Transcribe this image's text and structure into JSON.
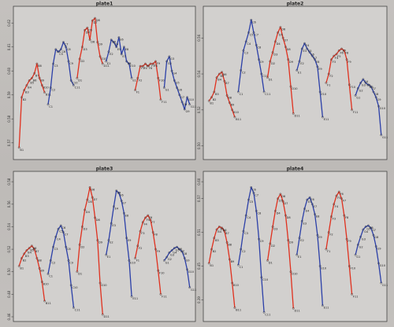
{
  "chart_data": [
    {
      "type": "line",
      "title": "plate1",
      "xlabel": "",
      "ylabel": "",
      "ylim": [
        0.565,
        0.625
      ],
      "yticks": [
        "0.57",
        "0.58",
        "0.59",
        "0.60",
        "0.61",
        "0.62"
      ],
      "series": [
        {
          "color": "#e0301e",
          "labels": [
            "B1",
            "B2",
            "B3",
            "B4",
            "B5",
            "B6",
            "B7",
            "B8",
            "B9",
            "B10",
            "B11"
          ],
          "values": [
            0.568,
            0.589,
            0.592,
            0.594,
            0.596,
            0.597,
            0.599,
            0.603,
            0.597,
            0.594,
            0.591
          ]
        },
        {
          "color": "#2b3fa8",
          "labels": [
            "C1",
            "C2",
            "C3",
            "C4",
            "C5",
            "C6",
            "C7",
            "C8",
            "C9",
            "C10",
            "C11"
          ],
          "values": [
            0.586,
            0.593,
            0.603,
            0.609,
            0.608,
            0.609,
            0.612,
            0.61,
            0.604,
            0.596,
            0.594
          ]
        },
        {
          "color": "#e0301e",
          "labels": [
            "D1",
            "D2",
            "D3",
            "D4",
            "D5",
            "D6",
            "D7",
            "D8",
            "D9",
            "D10",
            "D11"
          ],
          "values": [
            0.597,
            0.605,
            0.61,
            0.617,
            0.618,
            0.613,
            0.621,
            0.622,
            0.612,
            0.606,
            0.603
          ]
        },
        {
          "color": "#2b3fa8",
          "labels": [
            "E1",
            "E2",
            "E3",
            "E4",
            "E5",
            "E6",
            "E7",
            "E8",
            "E9",
            "E10",
            "E11"
          ],
          "values": [
            0.604,
            0.608,
            0.613,
            0.612,
            0.61,
            0.614,
            0.607,
            0.61,
            0.604,
            0.603,
            0.597
          ]
        },
        {
          "color": "#e0301e",
          "labels": [
            "F1",
            "F2",
            "F3",
            "F4",
            "F5",
            "F6",
            "F7",
            "F8",
            "F9",
            "F10",
            "F11"
          ],
          "values": [
            0.592,
            0.597,
            0.602,
            0.602,
            0.603,
            0.602,
            0.603,
            0.603,
            0.604,
            0.597,
            0.588
          ]
        },
        {
          "color": "#2b3fa8",
          "labels": [
            "G1",
            "G2",
            "G3",
            "G4",
            "G5",
            "G6",
            "G7",
            "G8",
            "G9",
            "G10",
            "G11"
          ],
          "values": [
            0.593,
            0.604,
            0.606,
            0.6,
            0.596,
            0.593,
            0.59,
            0.587,
            0.584,
            0.589,
            0.586
          ]
        }
      ]
    },
    {
      "type": "line",
      "title": "plate2",
      "xlabel": "",
      "ylabel": "",
      "ylim": [
        0.495,
        0.575
      ],
      "yticks": [
        "0.50",
        "0.52",
        "0.54",
        "0.56"
      ],
      "series": [
        {
          "color": "#e0301e",
          "labels": [
            "B1",
            "B2",
            "B3",
            "B4",
            "B5",
            "B6",
            "B7",
            "B8",
            "B9",
            "B10",
            "B11"
          ],
          "values": [
            0.525,
            0.527,
            0.53,
            0.538,
            0.54,
            0.541,
            0.536,
            0.528,
            0.524,
            0.52,
            0.516
          ]
        },
        {
          "color": "#2b3fa8",
          "labels": [
            "C1",
            "C2",
            "C3",
            "C4",
            "C5",
            "C6",
            "C7",
            "C8",
            "C9",
            "C10",
            "C11"
          ],
          "values": [
            0.53,
            0.542,
            0.553,
            0.558,
            0.563,
            0.57,
            0.563,
            0.556,
            0.548,
            0.54,
            0.53
          ]
        },
        {
          "color": "#e0301e",
          "labels": [
            "D1",
            "D2",
            "D3",
            "D4",
            "D5",
            "D6",
            "D7",
            "D8",
            "D9",
            "D10",
            "D11"
          ],
          "values": [
            0.538,
            0.547,
            0.552,
            0.558,
            0.563,
            0.566,
            0.56,
            0.555,
            0.548,
            0.533,
            0.518
          ]
        },
        {
          "color": "#2b3fa8",
          "labels": [
            "E1",
            "E2",
            "E3",
            "E4",
            "E5",
            "E6",
            "E7",
            "E8",
            "E9",
            "E10",
            "E11"
          ],
          "values": [
            0.542,
            0.547,
            0.554,
            0.557,
            0.554,
            0.552,
            0.55,
            0.548,
            0.544,
            0.53,
            0.516
          ]
        },
        {
          "color": "#e0301e",
          "labels": [
            "F1",
            "F2",
            "F3",
            "F4",
            "F5",
            "F6",
            "F7",
            "F8",
            "F9",
            "F10",
            "F11"
          ],
          "values": [
            0.535,
            0.54,
            0.548,
            0.55,
            0.551,
            0.553,
            0.554,
            0.553,
            0.548,
            0.534,
            0.52
          ]
        },
        {
          "color": "#2b3fa8",
          "labels": [
            "G1",
            "G2",
            "G3",
            "G4",
            "G5",
            "G6",
            "G7",
            "G8",
            "G9",
            "G10",
            "G11"
          ],
          "values": [
            0.528,
            0.532,
            0.535,
            0.537,
            0.535,
            0.534,
            0.533,
            0.53,
            0.527,
            0.522,
            0.506
          ]
        }
      ]
    },
    {
      "type": "line",
      "title": "plate3",
      "xlabel": "",
      "ylabel": "",
      "ylim": [
        0.46,
        0.585
      ],
      "yticks": [
        "0.46",
        "0.48",
        "0.50",
        "0.52",
        "0.54",
        "0.56",
        "0.58"
      ],
      "series": [
        {
          "color": "#e0301e",
          "labels": [
            "B1",
            "B2",
            "B3",
            "B4",
            "B5",
            "B6",
            "B7",
            "B8",
            "B9",
            "B10",
            "B11"
          ],
          "values": [
            0.505,
            0.512,
            0.516,
            0.519,
            0.521,
            0.523,
            0.52,
            0.512,
            0.503,
            0.491,
            0.474
          ]
        },
        {
          "color": "#2b3fa8",
          "labels": [
            "C1",
            "C2",
            "C3",
            "C4",
            "C5",
            "C6",
            "C7",
            "C8",
            "C9",
            "C10",
            "C11"
          ],
          "values": [
            0.498,
            0.51,
            0.522,
            0.531,
            0.538,
            0.541,
            0.535,
            0.522,
            0.51,
            0.488,
            0.468
          ]
        },
        {
          "color": "#e0301e",
          "labels": [
            "D1",
            "D2",
            "D3",
            "D4",
            "D5",
            "D6",
            "D7",
            "D8",
            "D9",
            "D10",
            "D11"
          ],
          "values": [
            0.5,
            0.524,
            0.54,
            0.555,
            0.564,
            0.575,
            0.566,
            0.548,
            0.528,
            0.49,
            0.462
          ]
        },
        {
          "color": "#2b3fa8",
          "labels": [
            "E1",
            "E2",
            "E3",
            "E4",
            "E5",
            "E6",
            "E7",
            "E8",
            "E9",
            "E10",
            "E11"
          ],
          "values": [
            0.515,
            0.528,
            0.543,
            0.558,
            0.572,
            0.57,
            0.563,
            0.552,
            0.53,
            0.51,
            0.478
          ]
        },
        {
          "color": "#e0301e",
          "labels": [
            "F1",
            "F2",
            "F3",
            "F4",
            "F5",
            "F6",
            "F7",
            "F8",
            "F9",
            "F10",
            "F11"
          ],
          "values": [
            0.512,
            0.523,
            0.536,
            0.544,
            0.548,
            0.55,
            0.546,
            0.535,
            0.52,
            0.501,
            0.48
          ]
        },
        {
          "color": "#2b3fa8",
          "labels": [
            "G1",
            "G2",
            "G3",
            "G4",
            "G5",
            "G6",
            "G7",
            "G8",
            "G9",
            "G10",
            "G11"
          ],
          "values": [
            0.51,
            0.513,
            0.517,
            0.519,
            0.521,
            0.522,
            0.52,
            0.518,
            0.512,
            0.502,
            0.486
          ]
        }
      ]
    },
    {
      "type": "line",
      "title": "plate4",
      "xlabel": "",
      "ylabel": "",
      "ylim": [
        0.36,
        0.61
      ],
      "yticks": [
        "0.39",
        "0.45",
        "0.51",
        "0.57",
        "0.60"
      ],
      "series": [
        {
          "color": "#e0301e",
          "labels": [
            "B1",
            "B2",
            "B3",
            "B4",
            "B5",
            "B6",
            "B7",
            "B8",
            "B9",
            "B10",
            "B11"
          ],
          "values": [
            0.455,
            0.48,
            0.5,
            0.515,
            0.52,
            0.518,
            0.512,
            0.492,
            0.462,
            0.42,
            0.376
          ]
        },
        {
          "color": "#2b3fa8",
          "labels": [
            "C1",
            "C2",
            "C3",
            "C4",
            "C5",
            "C6",
            "C7",
            "C8",
            "C9",
            "C10",
            "C11"
          ],
          "values": [
            0.452,
            0.48,
            0.512,
            0.54,
            0.568,
            0.59,
            0.58,
            0.548,
            0.498,
            0.43,
            0.368
          ]
        },
        {
          "color": "#e0301e",
          "labels": [
            "D1",
            "D2",
            "D3",
            "D4",
            "D5",
            "D6",
            "D7",
            "D8",
            "D9",
            "D10",
            "D11"
          ],
          "values": [
            0.46,
            0.49,
            0.52,
            0.548,
            0.57,
            0.578,
            0.565,
            0.54,
            0.496,
            0.44,
            0.375
          ]
        },
        {
          "color": "#2b3fa8",
          "labels": [
            "E1",
            "E2",
            "E3",
            "E4",
            "E5",
            "E6",
            "E7",
            "E8",
            "E9",
            "E10",
            "E11"
          ],
          "values": [
            0.47,
            0.5,
            0.53,
            0.552,
            0.568,
            0.572,
            0.56,
            0.542,
            0.505,
            0.45,
            0.38
          ]
        },
        {
          "color": "#e0301e",
          "labels": [
            "F1",
            "F2",
            "F3",
            "F4",
            "F5",
            "F6",
            "F7",
            "F8",
            "F9",
            "F10",
            "F11"
          ],
          "values": [
            0.48,
            0.51,
            0.538,
            0.56,
            0.575,
            0.582,
            0.57,
            0.54,
            0.498,
            0.45,
            0.4
          ]
        },
        {
          "color": "#2b3fa8",
          "labels": [
            "G1",
            "G2",
            "G3",
            "G4",
            "G5",
            "G6",
            "G7",
            "G8",
            "G9",
            "G10",
            "G11"
          ],
          "values": [
            0.47,
            0.488,
            0.502,
            0.515,
            0.52,
            0.522,
            0.518,
            0.505,
            0.485,
            0.455,
            0.42
          ]
        }
      ]
    }
  ]
}
